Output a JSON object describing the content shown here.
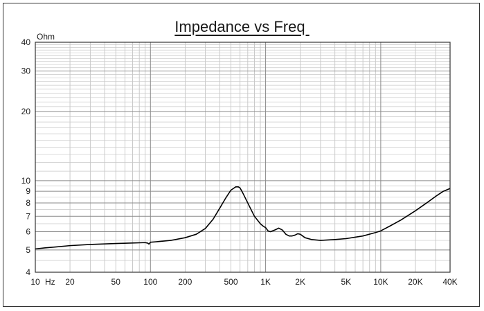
{
  "chart_data": {
    "type": "line",
    "title": "Impedance vs Freq ",
    "xlabel": "",
    "ylabel": "",
    "y_unit": "Ohm",
    "x_unit": "Hz",
    "x_scale": "log",
    "y_scale": "log",
    "xlim": [
      10,
      40000
    ],
    "ylim": [
      4,
      40
    ],
    "grid": true,
    "x_ticks": [
      {
        "value": 10,
        "label": "10"
      },
      {
        "value": 20,
        "label": "20"
      },
      {
        "value": 50,
        "label": "50"
      },
      {
        "value": 100,
        "label": "100"
      },
      {
        "value": 200,
        "label": "200"
      },
      {
        "value": 500,
        "label": "500"
      },
      {
        "value": 1000,
        "label": "1K"
      },
      {
        "value": 2000,
        "label": "2K"
      },
      {
        "value": 5000,
        "label": "5K"
      },
      {
        "value": 10000,
        "label": "10K"
      },
      {
        "value": 20000,
        "label": "20K"
      },
      {
        "value": 40000,
        "label": "40K"
      }
    ],
    "y_ticks": [
      {
        "value": 4,
        "label": "4"
      },
      {
        "value": 5,
        "label": "5"
      },
      {
        "value": 6,
        "label": "6"
      },
      {
        "value": 7,
        "label": "7"
      },
      {
        "value": 8,
        "label": "8"
      },
      {
        "value": 9,
        "label": "9"
      },
      {
        "value": 10,
        "label": "10"
      },
      {
        "value": 20,
        "label": "20"
      },
      {
        "value": 30,
        "label": "30"
      },
      {
        "value": 40,
        "label": "40"
      }
    ],
    "series": [
      {
        "color": "#000000",
        "x": [
          10,
          12,
          15,
          20,
          30,
          50,
          70,
          90,
          95,
          97,
          100,
          110,
          150,
          200,
          250,
          300,
          350,
          400,
          450,
          500,
          550,
          580,
          600,
          630,
          700,
          800,
          900,
          950,
          1000,
          1050,
          1100,
          1200,
          1300,
          1400,
          1500,
          1600,
          1700,
          1800,
          1900,
          2000,
          2200,
          2500,
          3000,
          4000,
          5000,
          7000,
          9000,
          10000,
          12000,
          15000,
          20000,
          25000,
          30000,
          35000,
          40000
        ],
        "y": [
          5.05,
          5.1,
          5.15,
          5.22,
          5.28,
          5.33,
          5.36,
          5.38,
          5.35,
          5.3,
          5.4,
          5.42,
          5.5,
          5.65,
          5.85,
          6.2,
          6.8,
          7.6,
          8.4,
          9.1,
          9.4,
          9.4,
          9.3,
          8.9,
          8.0,
          7.0,
          6.5,
          6.35,
          6.25,
          6.05,
          6.0,
          6.1,
          6.22,
          6.1,
          5.85,
          5.75,
          5.75,
          5.8,
          5.88,
          5.85,
          5.65,
          5.55,
          5.5,
          5.55,
          5.6,
          5.75,
          5.95,
          6.05,
          6.35,
          6.75,
          7.4,
          8.0,
          8.55,
          9.0,
          9.25
        ]
      }
    ]
  }
}
